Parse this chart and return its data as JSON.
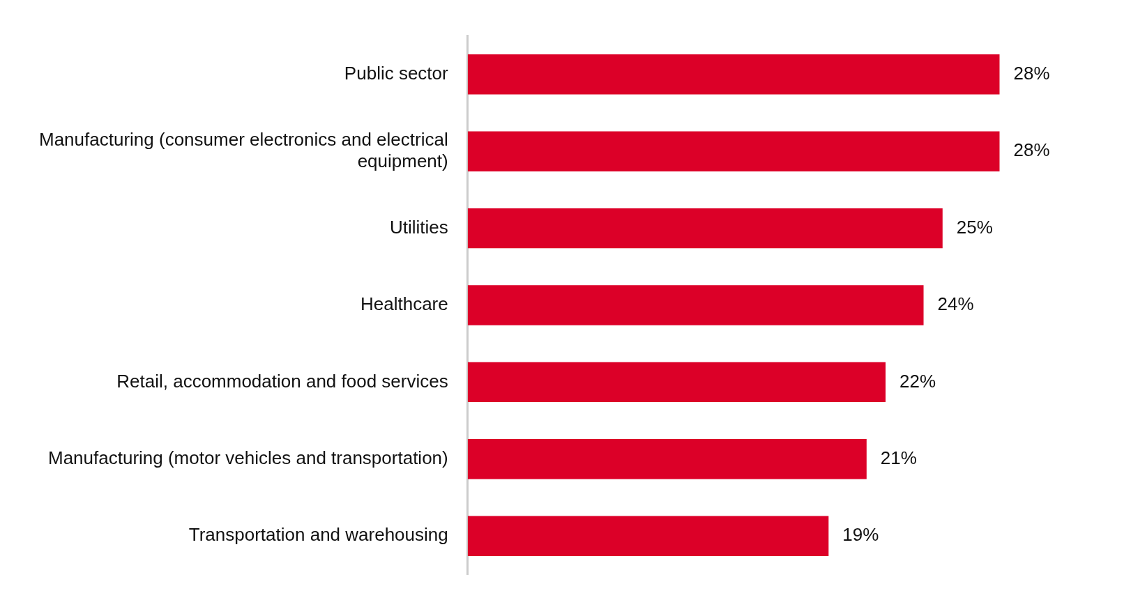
{
  "chart_data": {
    "type": "bar",
    "orientation": "horizontal",
    "categories": [
      "Public sector",
      "Manufacturing (consumer electronics and electrical equipment)",
      "Utilities",
      "Healthcare",
      "Retail, accommodation and food services",
      "Manufacturing (motor vehicles and transportation)",
      "Transportation and warehousing"
    ],
    "values": [
      28,
      28,
      25,
      24,
      22,
      21,
      19
    ],
    "value_labels": [
      "28%",
      "28%",
      "25%",
      "24%",
      "22%",
      "21%",
      "19%"
    ],
    "color": "#dc0028",
    "legend": false
  }
}
